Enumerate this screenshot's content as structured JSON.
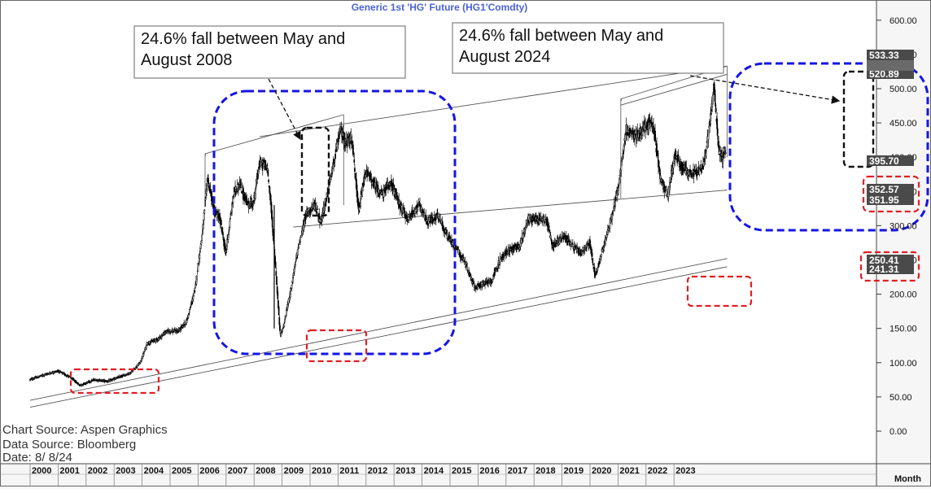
{
  "chart_data": {
    "type": "candlestick",
    "title": "Generic  1st  'HG'  Future  (HG1'Comdty)",
    "y_axis": {
      "side": "right",
      "range": [
        0,
        620
      ],
      "ticks": [
        "600.00",
        "550.00",
        "500.00",
        "450.00",
        "400.00",
        "350.00",
        "300.00",
        "250.00",
        "200.00",
        "150.00",
        "100.00",
        "50.00",
        "0.00"
      ]
    },
    "x_axis": {
      "period_label": "Month",
      "years": [
        "2000",
        "2001",
        "2002",
        "2003",
        "2004",
        "2005",
        "2006",
        "2007",
        "2008",
        "2009",
        "2010",
        "2011",
        "2012",
        "2013",
        "2014",
        "2015",
        "2016",
        "2017",
        "2018",
        "2019",
        "2020",
        "2021",
        "2022",
        "2023"
      ]
    },
    "price_labels": [
      {
        "text": "533.33",
        "value": 533.33
      },
      {
        "text": "520.89",
        "value": 520.89
      },
      {
        "text": "395.70",
        "value": 395.7
      },
      {
        "text": "352.57",
        "value": 352.57
      },
      {
        "text": "351.95",
        "value": 351.95
      },
      {
        "text": "250.41",
        "value": 250.41
      },
      {
        "text": "241.31",
        "value": 241.31
      }
    ],
    "annotations": [
      {
        "id": "note-2008",
        "lines": [
          "24.6% fall between May and",
          "August 2008"
        ]
      },
      {
        "id": "note-2024",
        "lines": [
          "24.6% fall between May and",
          "August 2024"
        ]
      }
    ],
    "anchors": [
      [
        2000.0,
        75
      ],
      [
        2000.5,
        82
      ],
      [
        2001.0,
        88
      ],
      [
        2001.4,
        80
      ],
      [
        2001.8,
        67
      ],
      [
        2002.3,
        75
      ],
      [
        2002.8,
        73
      ],
      [
        2003.2,
        79
      ],
      [
        2003.6,
        85
      ],
      [
        2003.95,
        100
      ],
      [
        2004.2,
        128
      ],
      [
        2004.6,
        135
      ],
      [
        2004.9,
        146
      ],
      [
        2005.3,
        146
      ],
      [
        2005.6,
        160
      ],
      [
        2005.9,
        205
      ],
      [
        2006.2,
        300
      ],
      [
        2006.35,
        370
      ],
      [
        2006.6,
        320
      ],
      [
        2006.8,
        310
      ],
      [
        2007.0,
        260
      ],
      [
        2007.3,
        350
      ],
      [
        2007.5,
        360
      ],
      [
        2007.8,
        330
      ],
      [
        2008.0,
        335
      ],
      [
        2008.2,
        390
      ],
      [
        2008.4,
        390
      ],
      [
        2008.5,
        380
      ],
      [
        2008.62,
        330
      ],
      [
        2008.8,
        230
      ],
      [
        2008.95,
        140
      ],
      [
        2009.05,
        150
      ],
      [
        2009.3,
        200
      ],
      [
        2009.6,
        270
      ],
      [
        2009.9,
        320
      ],
      [
        2010.2,
        330
      ],
      [
        2010.4,
        305
      ],
      [
        2010.6,
        340
      ],
      [
        2010.9,
        400
      ],
      [
        2011.1,
        440
      ],
      [
        2011.3,
        420
      ],
      [
        2011.5,
        430
      ],
      [
        2011.75,
        320
      ],
      [
        2012.0,
        380
      ],
      [
        2012.3,
        360
      ],
      [
        2012.6,
        345
      ],
      [
        2012.9,
        365
      ],
      [
        2013.2,
        330
      ],
      [
        2013.5,
        310
      ],
      [
        2013.9,
        330
      ],
      [
        2014.2,
        305
      ],
      [
        2014.6,
        315
      ],
      [
        2014.9,
        285
      ],
      [
        2015.2,
        270
      ],
      [
        2015.5,
        250
      ],
      [
        2015.9,
        210
      ],
      [
        2016.2,
        215
      ],
      [
        2016.5,
        220
      ],
      [
        2016.8,
        250
      ],
      [
        2017.1,
        265
      ],
      [
        2017.5,
        270
      ],
      [
        2017.8,
        310
      ],
      [
        2018.2,
        310
      ],
      [
        2018.45,
        310
      ],
      [
        2018.7,
        270
      ],
      [
        2019.1,
        285
      ],
      [
        2019.4,
        270
      ],
      [
        2019.7,
        260
      ],
      [
        2020.0,
        275
      ],
      [
        2020.2,
        225
      ],
      [
        2020.5,
        270
      ],
      [
        2020.8,
        315
      ],
      [
        2021.0,
        350
      ],
      [
        2021.3,
        440
      ],
      [
        2021.6,
        430
      ],
      [
        2021.9,
        440
      ],
      [
        2022.15,
        450
      ],
      [
        2022.3,
        440
      ],
      [
        2022.55,
        365
      ],
      [
        2022.8,
        345
      ],
      [
        2023.05,
        405
      ],
      [
        2023.3,
        385
      ],
      [
        2023.6,
        375
      ],
      [
        2023.9,
        380
      ],
      [
        2024.05,
        385
      ],
      [
        2024.3,
        450
      ],
      [
        2024.45,
        505
      ],
      [
        2024.6,
        415
      ],
      [
        2024.75,
        400
      ],
      [
        2024.85,
        410
      ]
    ],
    "trendlines": [
      {
        "name": "support-lower-1",
        "x": [
          2000.0,
          2024.9
        ],
        "y": [
          35,
          240
        ]
      },
      {
        "name": "support-lower-2",
        "x": [
          2000.0,
          2024.9
        ],
        "y": [
          45,
          252
        ]
      },
      {
        "name": "support-mid",
        "x": [
          2009.4,
          2024.9
        ],
        "y": [
          298,
          352
        ]
      },
      {
        "name": "resistance-2006",
        "x": [
          2006.25,
          2011.2
        ],
        "y": [
          405,
          462
        ]
      },
      {
        "name": "resistance-2008",
        "x": [
          2008.2,
          2024.9
        ],
        "y": [
          430,
          533
        ]
      },
      {
        "name": "resistance-2021",
        "x": [
          2021.1,
          2024.9
        ],
        "y": [
          485,
          533
        ]
      },
      {
        "name": "resistance-2021b",
        "x": [
          2021.1,
          2024.9
        ],
        "y": [
          476,
          521
        ]
      }
    ],
    "highlight_boxes": [
      {
        "name": "blue-region-2006-2012",
        "style": "blue-rounded"
      },
      {
        "name": "blue-region-2020-2024",
        "style": "blue-rounded"
      },
      {
        "name": "black-box-2008-fall",
        "style": "black"
      },
      {
        "name": "black-box-2024-fall",
        "style": "black"
      },
      {
        "name": "red-box-2001-low",
        "style": "red"
      },
      {
        "name": "red-box-2008-low",
        "style": "red"
      },
      {
        "name": "red-box-2020-low",
        "style": "red"
      },
      {
        "name": "red-box-352-labels",
        "style": "red"
      },
      {
        "name": "red-box-250-labels",
        "style": "red"
      }
    ],
    "grid": false,
    "colors": {
      "candle": "#000000",
      "trendline": "#555555",
      "blue_box": "#1515e6",
      "red_box": "#e31e24",
      "black_box": "#111111",
      "title": "#4b62d6",
      "label_bg": "#4a4a4a",
      "label_text": "#ffffff",
      "axis_bg": "#f6f6f6"
    }
  },
  "sources": {
    "chart": "Chart Source:  Aspen Graphics",
    "data": "Data  Source:  Bloomberg",
    "date": "Date:    8/  8/24"
  }
}
